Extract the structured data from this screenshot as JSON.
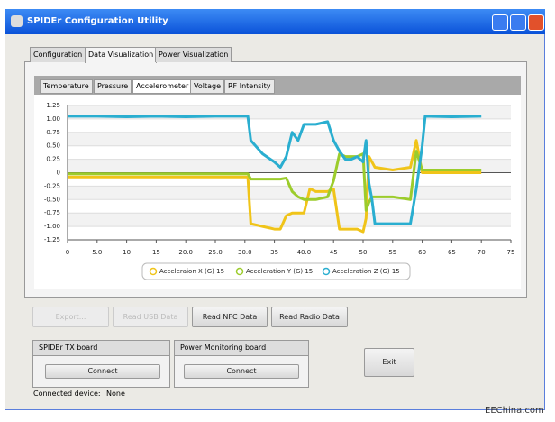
{
  "window": {
    "title": "SPIDEr Configuration Utility"
  },
  "tabs": [
    "Configuration",
    "Data Visualization",
    "Power Visualization"
  ],
  "subtabs": [
    "Temperature",
    "Pressure",
    "Accelerometer",
    "Voltage",
    "RF Intensity"
  ],
  "chart_data": {
    "type": "line",
    "x": [
      0,
      5,
      10,
      15,
      20,
      25,
      30,
      30.5,
      31,
      33,
      35,
      36,
      37,
      38,
      39,
      40,
      41,
      42,
      44,
      45,
      46,
      47,
      48,
      49,
      50,
      50.5,
      51,
      51.5,
      52,
      55,
      58,
      59,
      60,
      60.5,
      65,
      70
    ],
    "series": [
      {
        "name": "Acceleraion X (G) 15",
        "color": "#f0c419",
        "values": [
          -0.08,
          -0.08,
          -0.08,
          -0.08,
          -0.08,
          -0.08,
          -0.08,
          -0.08,
          -0.95,
          -1.0,
          -1.05,
          -1.05,
          -0.8,
          -0.75,
          -0.75,
          -0.75,
          -0.3,
          -0.35,
          -0.35,
          -0.3,
          -1.05,
          -1.05,
          -1.05,
          -1.05,
          -1.1,
          -0.85,
          0.3,
          0.2,
          0.1,
          0.05,
          0.1,
          0.6,
          0.0,
          0.0,
          0.0,
          0.0
        ]
      },
      {
        "name": "Acceleration Y (G) 15",
        "color": "#9ccc2c",
        "values": [
          -0.02,
          -0.02,
          -0.02,
          -0.02,
          -0.02,
          -0.02,
          -0.02,
          -0.02,
          -0.12,
          -0.12,
          -0.12,
          -0.12,
          -0.1,
          -0.35,
          -0.45,
          -0.5,
          -0.5,
          -0.5,
          -0.45,
          -0.15,
          0.35,
          0.3,
          0.3,
          0.3,
          0.35,
          -0.7,
          -0.55,
          -0.45,
          -0.45,
          -0.45,
          -0.5,
          0.4,
          0.05,
          0.05,
          0.05,
          0.05
        ]
      },
      {
        "name": "Acceleration Z (G) 15",
        "color": "#2aaed0",
        "values": [
          1.05,
          1.05,
          1.04,
          1.05,
          1.04,
          1.05,
          1.05,
          1.05,
          0.6,
          0.35,
          0.2,
          0.1,
          0.3,
          0.75,
          0.6,
          0.9,
          0.9,
          0.9,
          0.95,
          0.6,
          0.4,
          0.25,
          0.25,
          0.3,
          0.2,
          0.6,
          -0.2,
          -0.5,
          -0.95,
          -0.95,
          -0.95,
          -0.3,
          0.5,
          1.05,
          1.04,
          1.05
        ]
      }
    ],
    "xlim": [
      0,
      75
    ],
    "xticks": [
      0,
      {
        "value": 5,
        "label": "5.0"
      },
      10,
      15,
      {
        "value": 20,
        "label": "20.0"
      },
      {
        "value": 25,
        "label": "25.0"
      },
      {
        "value": 30,
        "label": "30.0"
      },
      35,
      {
        "value": 40,
        "label": "40.0"
      },
      45,
      50,
      55,
      60,
      65,
      70,
      75
    ],
    "ylim": [
      -1.25,
      1.25
    ],
    "yticks": [
      {
        "value": 1.25,
        "label": "1.25"
      },
      {
        "value": 1,
        "label": "1.00"
      },
      {
        "value": 0.75,
        "label": "0.75"
      },
      {
        "value": 0.5,
        "label": "0.50"
      },
      {
        "value": 0.25,
        "label": "0.25"
      },
      0,
      {
        "value": -0.25,
        "label": "-0.25"
      },
      {
        "value": -0.5,
        "label": "-0.50"
      },
      {
        "value": -0.75,
        "label": "-0.75"
      },
      {
        "value": -1,
        "label": "-1.00"
      },
      {
        "value": -1.25,
        "label": "-1.25"
      }
    ],
    "grid": true
  },
  "buttons": {
    "export": "Export...",
    "read_usb": "Read USB Data",
    "read_nfc": "Read NFC Data",
    "read_radio": "Read Radio Data",
    "exit": "Exit"
  },
  "groups": [
    {
      "title": "SPIDEr TX board",
      "button": "Connect"
    },
    {
      "title": "Power Monitoring board",
      "button": "Connect"
    }
  ],
  "status": {
    "label": "Connected device:",
    "value": "None"
  },
  "watermark": "EEChina.com"
}
